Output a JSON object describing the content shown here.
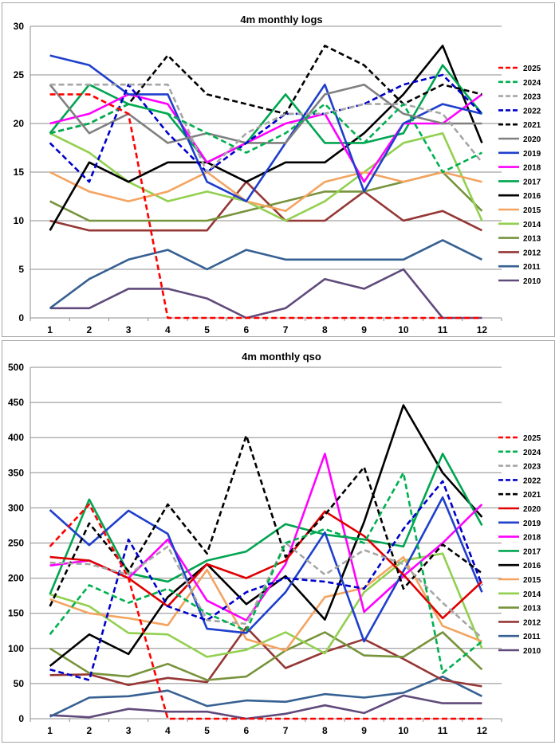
{
  "chart_data": [
    {
      "type": "line",
      "title": "4m monthly logs",
      "x": [
        1,
        2,
        3,
        4,
        5,
        6,
        7,
        8,
        9,
        10,
        11,
        12
      ],
      "ylim": [
        0,
        30
      ],
      "yticks": [
        0,
        5,
        10,
        15,
        20,
        25,
        30
      ],
      "grid": "horizontal",
      "legend_position": "right",
      "series": [
        {
          "name": "2025",
          "color": "#ff0000",
          "dashed": true,
          "values": [
            23,
            23,
            21,
            0,
            0,
            0,
            0,
            0,
            0,
            0,
            0,
            0
          ]
        },
        {
          "name": "2024",
          "color": "#00b050",
          "dashed": true,
          "values": [
            19,
            20,
            22,
            21,
            19,
            17,
            19,
            22,
            18,
            22,
            15,
            17
          ]
        },
        {
          "name": "2023",
          "color": "#a6a6a6",
          "dashed": true,
          "values": [
            24,
            24,
            24,
            24,
            15,
            19,
            21,
            21,
            22,
            22,
            21,
            16
          ]
        },
        {
          "name": "2022",
          "color": "#0000cc",
          "dashed": true,
          "values": [
            18,
            14,
            24,
            19,
            15,
            18,
            21,
            21,
            22,
            24,
            25,
            21
          ]
        },
        {
          "name": "2021",
          "color": "#000000",
          "dashed": true,
          "values": [
            19,
            20,
            22,
            27,
            23,
            22,
            21,
            28,
            26,
            22,
            24,
            23
          ]
        },
        {
          "name": "2020",
          "color": "#808080",
          "dashed": false,
          "values": [
            24,
            19,
            21,
            18,
            19,
            18,
            18,
            23,
            24,
            21,
            20,
            20
          ]
        },
        {
          "name": "2019",
          "color": "#1f3fcc",
          "dashed": false,
          "values": [
            27,
            26,
            23,
            23,
            14,
            12,
            18,
            24,
            13,
            20,
            22,
            21
          ]
        },
        {
          "name": "2018",
          "color": "#ff00ff",
          "dashed": false,
          "values": [
            20,
            21,
            23,
            22,
            16,
            18,
            20,
            21,
            14,
            20,
            20,
            23
          ]
        },
        {
          "name": "2017",
          "color": "#00a550",
          "dashed": false,
          "values": [
            19,
            24,
            22,
            21,
            16,
            18,
            23,
            18,
            18,
            19,
            26,
            21
          ]
        },
        {
          "name": "2016",
          "color": "#000000",
          "dashed": false,
          "values": [
            9,
            16,
            14,
            16,
            16,
            14,
            16,
            16,
            19,
            23,
            28,
            18
          ]
        },
        {
          "name": "2015",
          "color": "#f4a460",
          "dashed": false,
          "values": [
            15,
            13,
            12,
            13,
            15,
            12,
            11,
            14,
            15,
            14,
            15,
            14
          ]
        },
        {
          "name": "2014",
          "color": "#92d050",
          "dashed": false,
          "values": [
            19,
            17,
            14,
            12,
            13,
            12,
            10,
            12,
            15,
            18,
            19,
            10
          ]
        },
        {
          "name": "2013",
          "color": "#77933c",
          "dashed": false,
          "values": [
            12,
            10,
            10,
            10,
            10,
            11,
            12,
            13,
            13,
            14,
            15,
            11
          ]
        },
        {
          "name": "2012",
          "color": "#953735",
          "dashed": false,
          "values": [
            10,
            9,
            9,
            9,
            9,
            14,
            10,
            10,
            13,
            10,
            11,
            9
          ]
        },
        {
          "name": "2011",
          "color": "#366092",
          "dashed": false,
          "values": [
            1,
            4,
            6,
            7,
            5,
            7,
            6,
            6,
            6,
            6,
            8,
            6
          ]
        },
        {
          "name": "2010",
          "color": "#604a7b",
          "dashed": false,
          "values": [
            1,
            1,
            3,
            3,
            2,
            0,
            1,
            4,
            3,
            5,
            0,
            0
          ]
        }
      ]
    },
    {
      "type": "line",
      "title": "4m monthly qso",
      "x": [
        1,
        2,
        3,
        4,
        5,
        6,
        7,
        8,
        9,
        10,
        11,
        12
      ],
      "ylim": [
        0,
        500
      ],
      "yticks": [
        0,
        50,
        100,
        150,
        200,
        250,
        300,
        350,
        400,
        450,
        500
      ],
      "grid": "horizontal",
      "legend_position": "right",
      "series": [
        {
          "name": "2025",
          "color": "#ff0000",
          "dashed": true,
          "values": [
            245,
            305,
            200,
            0,
            0,
            0,
            0,
            0,
            0,
            0,
            0,
            0
          ]
        },
        {
          "name": "2024",
          "color": "#00b050",
          "dashed": true,
          "values": [
            120,
            190,
            165,
            185,
            150,
            125,
            250,
            270,
            250,
            350,
            65,
            110
          ]
        },
        {
          "name": "2023",
          "color": "#a6a6a6",
          "dashed": true,
          "values": [
            222,
            220,
            205,
            245,
            140,
            135,
            250,
            205,
            240,
            220,
            165,
            115
          ]
        },
        {
          "name": "2022",
          "color": "#0000cc",
          "dashed": true,
          "values": [
            70,
            55,
            255,
            160,
            140,
            180,
            200,
            195,
            185,
            270,
            338,
            190
          ]
        },
        {
          "name": "2021",
          "color": "#000000",
          "dashed": true,
          "values": [
            160,
            278,
            210,
            305,
            235,
            403,
            230,
            290,
            358,
            185,
            248,
            207
          ]
        },
        {
          "name": "2020",
          "color": "#e00000",
          "dashed": false,
          "values": [
            230,
            225,
            200,
            160,
            220,
            200,
            225,
            295,
            260,
            205,
            143,
            195
          ]
        },
        {
          "name": "2019",
          "color": "#1f3fcc",
          "dashed": false,
          "values": [
            297,
            247,
            296,
            263,
            128,
            122,
            180,
            265,
            110,
            210,
            315,
            180
          ]
        },
        {
          "name": "2018",
          "color": "#ff00ff",
          "dashed": false,
          "values": [
            218,
            225,
            200,
            255,
            168,
            140,
            220,
            377,
            152,
            203,
            250,
            305
          ]
        },
        {
          "name": "2017",
          "color": "#00a550",
          "dashed": false,
          "values": [
            177,
            312,
            207,
            195,
            225,
            238,
            277,
            262,
            255,
            245,
            377,
            275
          ]
        },
        {
          "name": "2016",
          "color": "#000000",
          "dashed": false,
          "values": [
            75,
            120,
            92,
            173,
            220,
            163,
            203,
            141,
            280,
            446,
            350,
            287
          ]
        },
        {
          "name": "2015",
          "color": "#f4a460",
          "dashed": false,
          "values": [
            170,
            150,
            143,
            133,
            212,
            113,
            97,
            173,
            186,
            230,
            132,
            110
          ]
        },
        {
          "name": "2014",
          "color": "#92d050",
          "dashed": false,
          "values": [
            177,
            160,
            122,
            120,
            88,
            98,
            123,
            93,
            180,
            225,
            235,
            100
          ]
        },
        {
          "name": "2013",
          "color": "#77933c",
          "dashed": false,
          "values": [
            100,
            65,
            60,
            78,
            55,
            60,
            97,
            123,
            90,
            88,
            123,
            70
          ]
        },
        {
          "name": "2012",
          "color": "#953735",
          "dashed": false,
          "values": [
            62,
            63,
            48,
            58,
            52,
            130,
            72,
            95,
            113,
            85,
            55,
            46
          ]
        },
        {
          "name": "2011",
          "color": "#366092",
          "dashed": false,
          "values": [
            3,
            30,
            32,
            40,
            18,
            26,
            24,
            35,
            30,
            37,
            60,
            32
          ]
        },
        {
          "name": "2010",
          "color": "#604a7b",
          "dashed": false,
          "values": [
            5,
            2,
            14,
            10,
            10,
            0,
            7,
            19,
            8,
            33,
            22,
            22
          ]
        }
      ]
    }
  ]
}
